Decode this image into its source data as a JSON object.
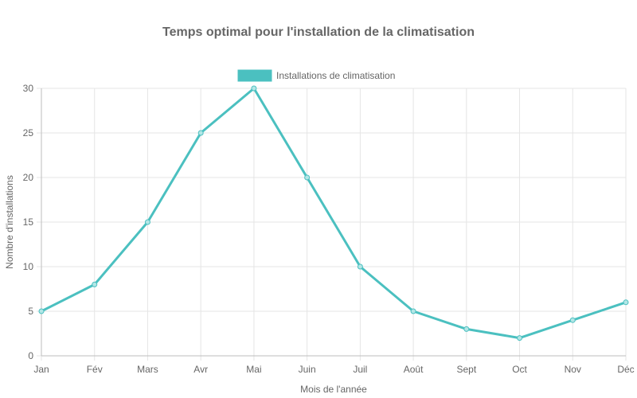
{
  "chart_data": {
    "type": "line",
    "title": "Temps optimal pour l'installation de la climatisation",
    "xlabel": "Mois de l'année",
    "ylabel": "Nombre d'installations",
    "categories": [
      "Jan",
      "Fév",
      "Mars",
      "Avr",
      "Mai",
      "Juin",
      "Juil",
      "Août",
      "Sept",
      "Oct",
      "Nov",
      "Déc"
    ],
    "series": [
      {
        "name": "Installations de climatisation",
        "values": [
          5,
          8,
          15,
          25,
          30,
          20,
          10,
          5,
          3,
          2,
          4,
          6
        ],
        "color": "#4bc0c0"
      }
    ],
    "ylim": [
      0,
      30
    ],
    "yticks": [
      0,
      5,
      10,
      15,
      20,
      25,
      30
    ],
    "grid": true,
    "legend_position": "top"
  }
}
